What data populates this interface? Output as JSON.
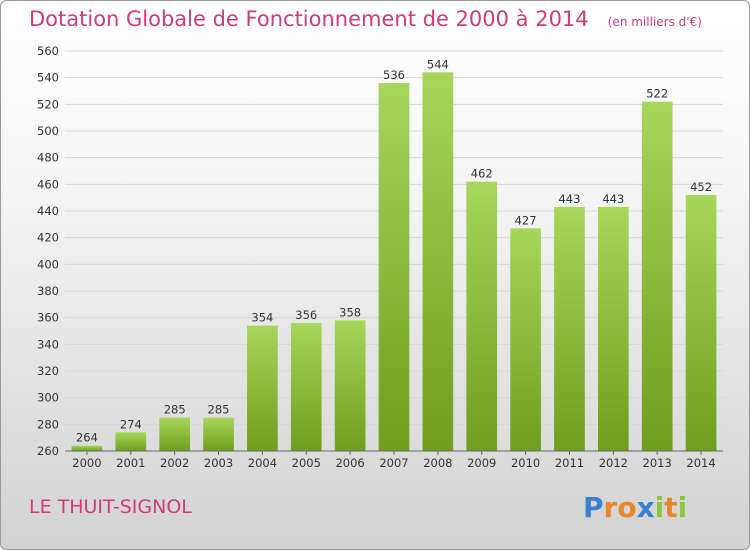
{
  "header": {
    "title": "Dotation Globale de Fonctionnement de 2000 à 2014",
    "unit": "(en milliers d'€)"
  },
  "footer": {
    "commune": "LE THUIT-SIGNOL",
    "logo_text": "Proxiti"
  },
  "colors": {
    "title": "#d33a7a",
    "bar_light": "#a6d65a",
    "bar_dark": "#6f9e1e",
    "logo_p": "#3b7fd0",
    "logo_r": "#e8862a",
    "logo_o": "#e8862a",
    "logo_x": "#3b7fd0",
    "logo_i": "#8cc63f",
    "logo_t": "#e8862a"
  },
  "chart_data": {
    "type": "bar",
    "title": "Dotation Globale de Fonctionnement de 2000 à 2014",
    "subtitle": "(en milliers d'€)",
    "xlabel": "",
    "ylabel": "",
    "ylim": [
      260,
      560
    ],
    "yticks": [
      260,
      280,
      300,
      320,
      340,
      360,
      380,
      400,
      420,
      440,
      460,
      480,
      500,
      520,
      540,
      560
    ],
    "grid": true,
    "categories": [
      "2000",
      "2001",
      "2002",
      "2003",
      "2004",
      "2005",
      "2006",
      "2007",
      "2008",
      "2009",
      "2010",
      "2011",
      "2012",
      "2013",
      "2014"
    ],
    "values": [
      264,
      274,
      285,
      285,
      354,
      356,
      358,
      536,
      544,
      462,
      427,
      443,
      443,
      522,
      452
    ]
  }
}
